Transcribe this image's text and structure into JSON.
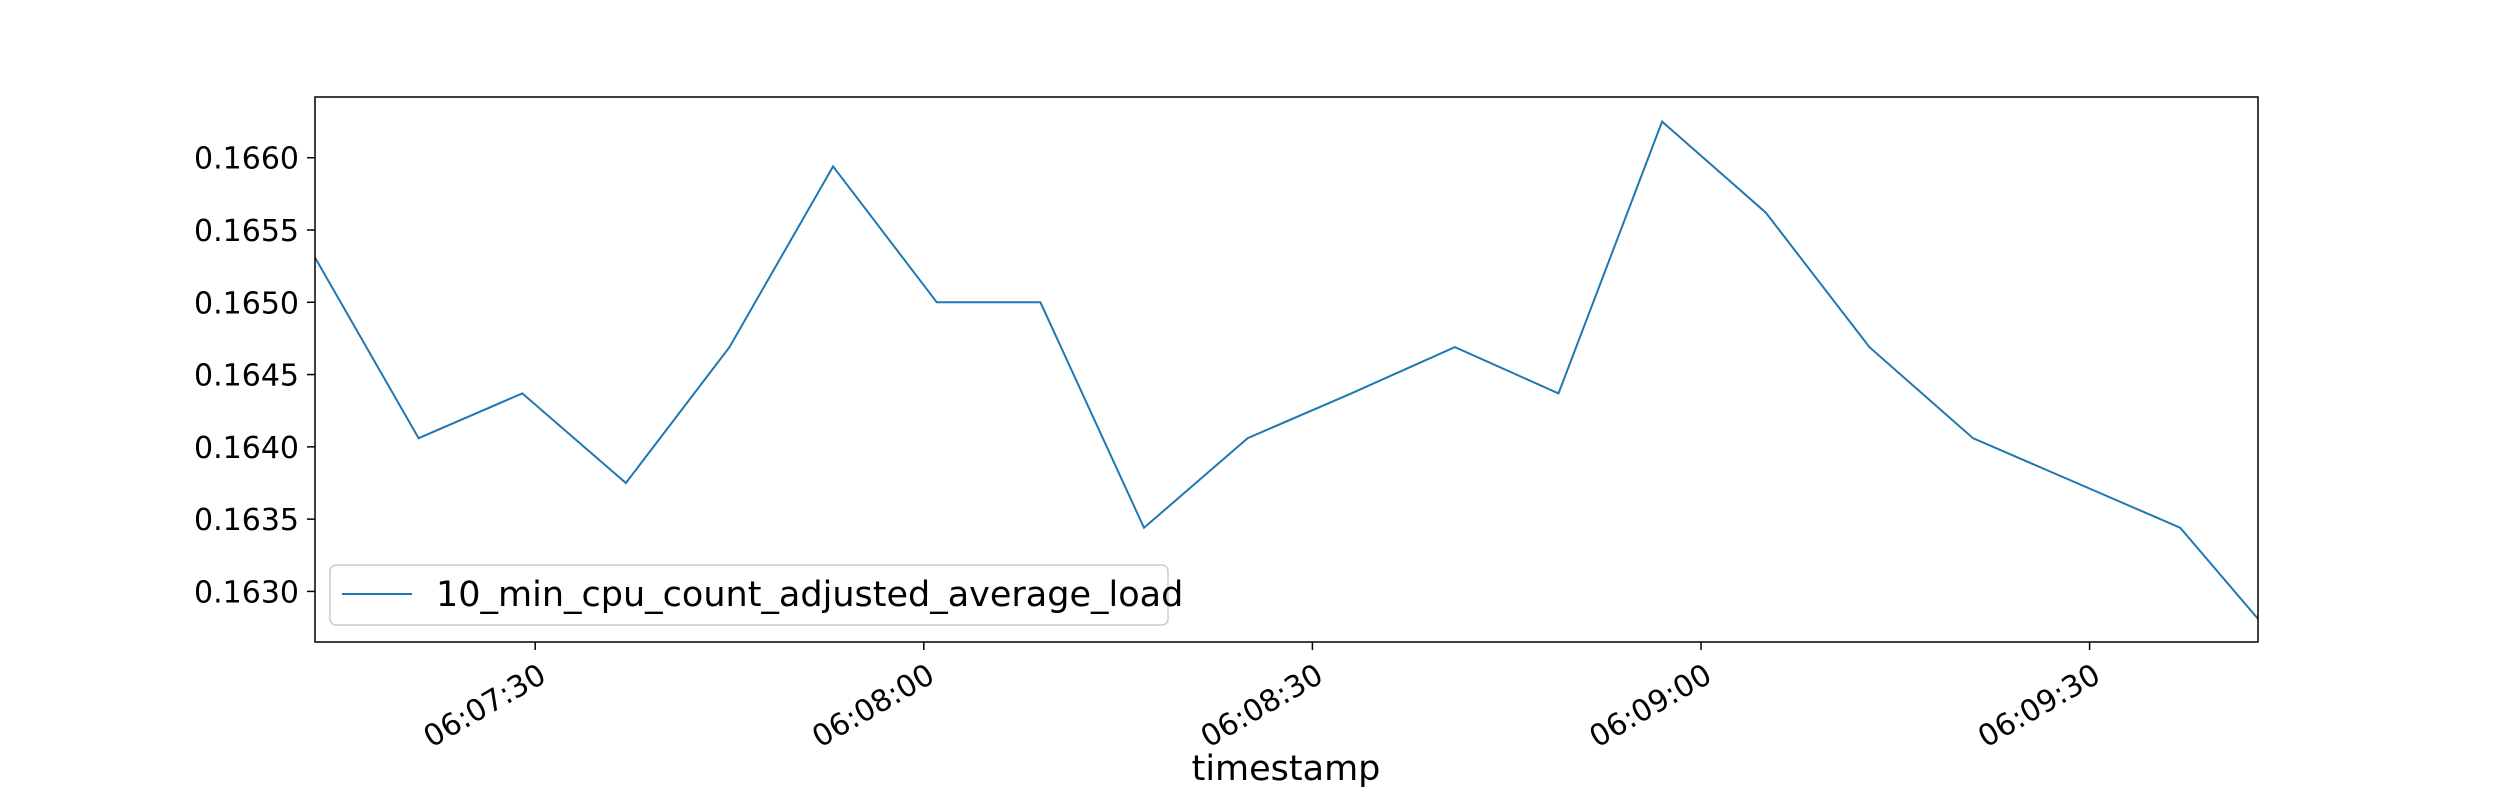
{
  "chart_data": {
    "type": "line",
    "title": "",
    "xlabel": "timestamp",
    "ylabel": "",
    "x_start": "06:07:13",
    "x_end": "06:09:43",
    "xlim": [
      "06:07:13",
      "06:09:43"
    ],
    "ylim": [
      0.16265,
      0.16642
    ],
    "x_ticks": [
      "06:07:30",
      "06:08:00",
      "06:08:30",
      "06:09:00",
      "06:09:30"
    ],
    "y_ticks": [
      "0.1630",
      "0.1635",
      "0.1640",
      "0.1645",
      "0.1650",
      "0.1655",
      "0.1660"
    ],
    "grid": false,
    "legend_position": "lower-left",
    "series": [
      {
        "name": "10_min_cpu_count_adjusted_average_load",
        "color": "#1f77b4",
        "x": [
          "06:07:13",
          "06:07:21",
          "06:07:29",
          "06:07:37",
          "06:07:45",
          "06:07:53",
          "06:08:01",
          "06:08:09",
          "06:08:17",
          "06:08:25",
          "06:08:33",
          "06:08:41",
          "06:08:49",
          "06:08:57",
          "06:09:05",
          "06:09:13",
          "06:09:21",
          "06:09:29",
          "06:09:37",
          "06:09:43"
        ],
        "values": [
          0.16531,
          0.16406,
          0.16437,
          0.16375,
          0.16469,
          0.16594,
          0.165,
          0.165,
          0.16344,
          0.16406,
          0.16437,
          0.16469,
          0.16437,
          0.16625,
          0.16562,
          0.16469,
          0.16406,
          0.16375,
          0.16344,
          0.16281
        ]
      }
    ]
  }
}
